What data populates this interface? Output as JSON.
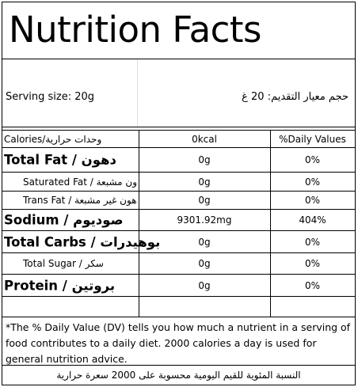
{
  "title": "Nutrition Facts",
  "serving": {
    "en": "Serving size: 20g",
    "ar": "حجم معيار التقديم: 20 غ"
  },
  "header": {
    "label": "Calories/وحدات حرارية",
    "value": "0kcal",
    "dv": "%Daily Values"
  },
  "rows": [
    {
      "label": "Total Fat / دهون",
      "value": "0g",
      "dv": "0%"
    },
    {
      "label": "Saturated Fat / ون مشبعة",
      "value": "0g",
      "dv": "0%"
    },
    {
      "label": "Trans Fat / هون غير مشبعة",
      "value": "0g",
      "dv": "0%"
    },
    {
      "label": "Sodium / صوديوم",
      "value": "9301.92mg",
      "dv": "404%"
    },
    {
      "label": "Total Carbs / بوهيدرات",
      "value": "0g",
      "dv": "0%"
    },
    {
      "label": "Total Sugar / سكر",
      "value": "0g",
      "dv": "0%"
    },
    {
      "label": "Protein / بروتين",
      "value": "0g",
      "dv": "0%"
    }
  ],
  "footer": {
    "en": "*The % Daily Value (DV) tells you how much a nutrient in a serving of food contributes to a daily diet. 2000 calories a day is used for general nutrition advice.",
    "ar": "النسبة المئوية للقيم اليومية محسوبة على 2000 سعرة حرارية"
  }
}
